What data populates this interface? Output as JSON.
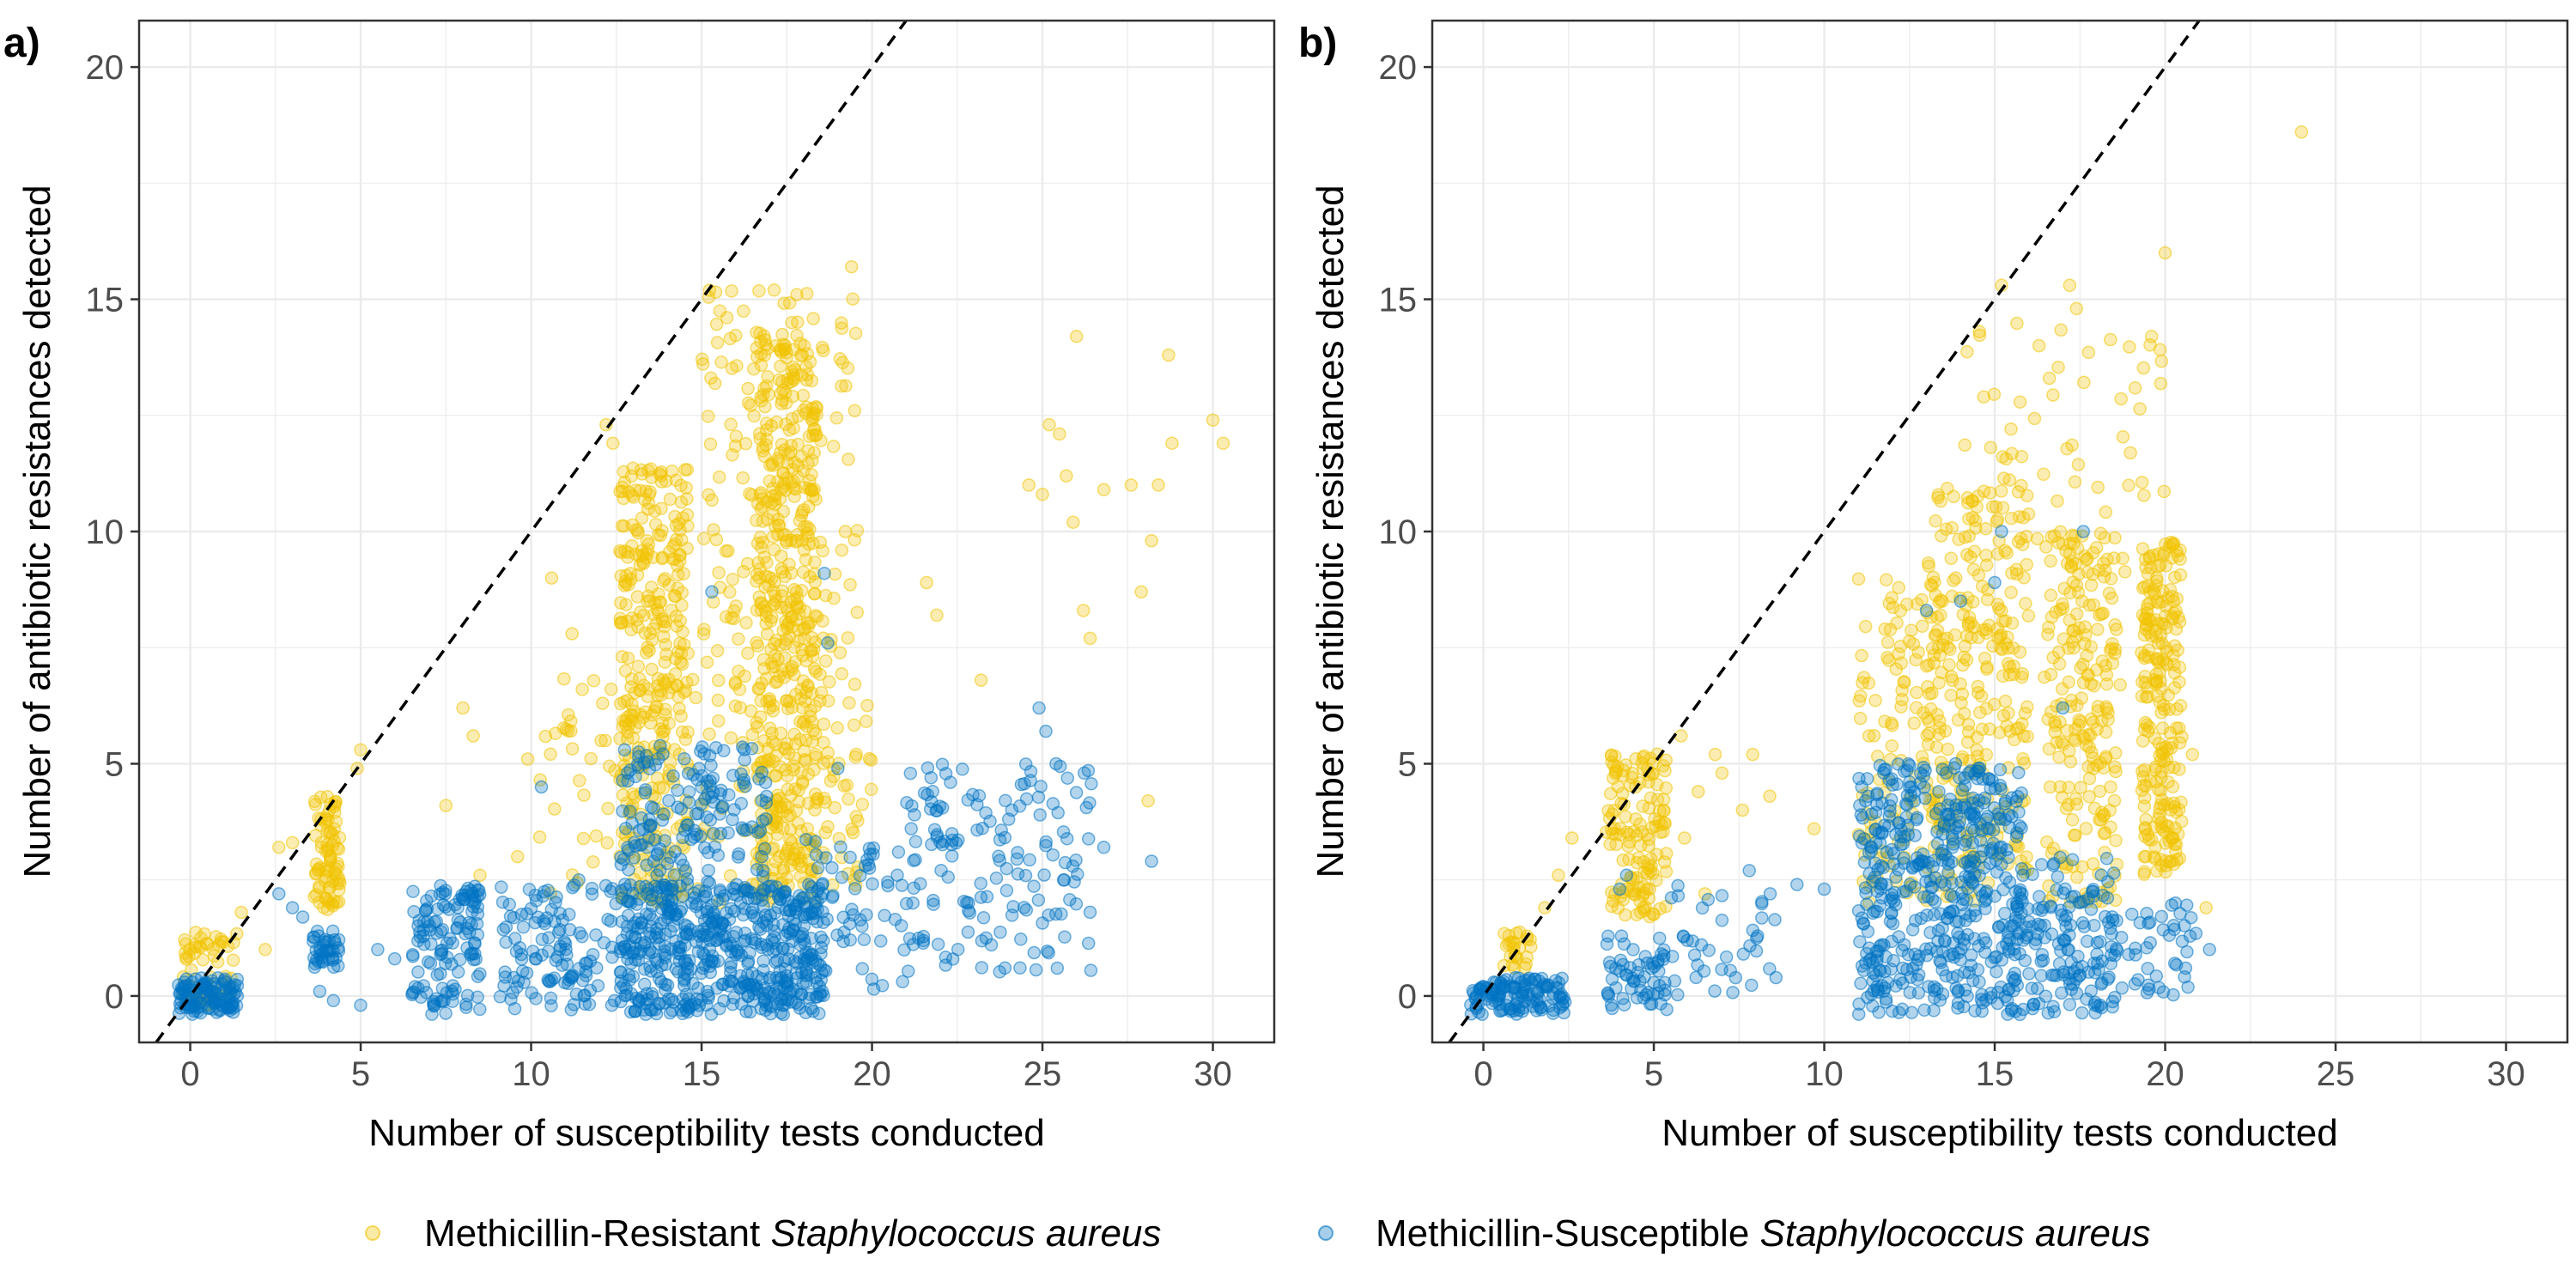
{
  "colors": {
    "mrsa": "#F1C200",
    "mssa": "#0073C2",
    "grid": "#EBEBEB",
    "frame": "#333333",
    "tick_text": "#4D4D4D",
    "background": "#FFFFFF"
  },
  "legend": {
    "mrsa_prefix": "Methicillin-Resistant",
    "mrsa_species": "Staphylococcus aureus",
    "mssa_prefix": "Methicillin-Susceptible",
    "mssa_species": "Staphylococcus aureus"
  },
  "chart_data": [
    {
      "panel": "a)",
      "type": "scatter",
      "xlabel": "Number of susceptibility tests conducted",
      "ylabel": "Number of antibiotic resistances detected",
      "xlim": [
        -1.5,
        31.8
      ],
      "ylim": [
        -1.0,
        21.0
      ],
      "xticks": [
        0,
        5,
        10,
        15,
        20,
        25,
        30
      ],
      "yticks": [
        0,
        5,
        10,
        15,
        20
      ],
      "grid": true,
      "reference_line": "y = x (dashed)",
      "series": [
        {
          "name": "Methicillin-Resistant Staphylococcus aureus",
          "color": "#F1C200",
          "clusters": [
            {
              "x": [
                -0.2,
                1.4
              ],
              "y": [
                -0.2,
                1.4
              ],
              "n": 60
            },
            {
              "x": [
                3.6,
                4.4
              ],
              "y": [
                1.8,
                4.3
              ],
              "n": 80
            },
            {
              "x": [
                12.6,
                14.6
              ],
              "y": [
                8.0,
                11.4
              ],
              "n": 140
            },
            {
              "x": [
                12.6,
                14.6
              ],
              "y": [
                2.0,
                8.0
              ],
              "n": 180
            },
            {
              "x": [
                16.6,
                18.4
              ],
              "y": [
                2.0,
                14.3
              ],
              "n": 420
            },
            {
              "x": [
                15.0,
                19.6
              ],
              "y": [
                3.0,
                15.2
              ],
              "n": 220
            },
            {
              "x": [
                10.0,
                20.0
              ],
              "y": [
                2.0,
                7.0
              ],
              "n": 120
            }
          ],
          "points": [
            {
              "x": 2.6,
              "y": 3.2
            },
            {
              "x": 3.0,
              "y": 3.3
            },
            {
              "x": 1.5,
              "y": 1.8
            },
            {
              "x": 2.2,
              "y": 1.0
            },
            {
              "x": 5.0,
              "y": 5.3
            },
            {
              "x": 8.0,
              "y": 6.2
            },
            {
              "x": 8.3,
              "y": 5.6
            },
            {
              "x": 10.6,
              "y": 9.0
            },
            {
              "x": 11.2,
              "y": 7.8
            },
            {
              "x": 11.5,
              "y": 6.6
            },
            {
              "x": 19.4,
              "y": 15.7
            },
            {
              "x": 21.6,
              "y": 8.9
            },
            {
              "x": 21.9,
              "y": 8.2
            },
            {
              "x": 23.2,
              "y": 6.8
            },
            {
              "x": 24.6,
              "y": 11.0
            },
            {
              "x": 25.0,
              "y": 10.8
            },
            {
              "x": 25.2,
              "y": 12.3
            },
            {
              "x": 25.5,
              "y": 12.1
            },
            {
              "x": 25.7,
              "y": 11.2
            },
            {
              "x": 25.9,
              "y": 10.2
            },
            {
              "x": 26.0,
              "y": 14.2
            },
            {
              "x": 26.2,
              "y": 8.3
            },
            {
              "x": 26.4,
              "y": 7.7
            },
            {
              "x": 26.8,
              "y": 10.9
            },
            {
              "x": 27.6,
              "y": 11.0
            },
            {
              "x": 28.1,
              "y": 4.2
            },
            {
              "x": 28.2,
              "y": 9.8
            },
            {
              "x": 28.4,
              "y": 11.0
            },
            {
              "x": 28.7,
              "y": 13.8
            },
            {
              "x": 28.8,
              "y": 11.9
            },
            {
              "x": 30.0,
              "y": 12.4
            },
            {
              "x": 30.3,
              "y": 11.9
            },
            {
              "x": 27.9,
              "y": 8.7
            },
            {
              "x": 4.9,
              "y": 4.9
            },
            {
              "x": 7.5,
              "y": 4.1
            },
            {
              "x": 8.5,
              "y": 2.6
            },
            {
              "x": 9.6,
              "y": 3.0
            },
            {
              "x": 9.9,
              "y": 5.1
            },
            {
              "x": 12.2,
              "y": 12.3
            },
            {
              "x": 12.4,
              "y": 11.9
            }
          ]
        },
        {
          "name": "Methicillin-Susceptible Staphylococcus aureus",
          "color": "#0073C2",
          "clusters": [
            {
              "x": [
                -0.4,
                1.4
              ],
              "y": [
                -0.4,
                0.4
              ],
              "n": 120
            },
            {
              "x": [
                3.6,
                4.4
              ],
              "y": [
                0.6,
                1.4
              ],
              "n": 40
            },
            {
              "x": [
                6.5,
                8.5
              ],
              "y": [
                0.4,
                2.4
              ],
              "n": 100
            },
            {
              "x": [
                6.5,
                8.5
              ],
              "y": [
                -0.4,
                0.3
              ],
              "n": 30
            },
            {
              "x": [
                9.0,
                12.5
              ],
              "y": [
                -0.3,
                2.4
              ],
              "n": 120
            },
            {
              "x": [
                12.6,
                18.6
              ],
              "y": [
                -0.4,
                2.4
              ],
              "n": 560
            },
            {
              "x": [
                12.6,
                17.0
              ],
              "y": [
                2.4,
                5.4
              ],
              "n": 160
            },
            {
              "x": [
                18.0,
                21.0
              ],
              "y": [
                0.0,
                3.5
              ],
              "n": 60
            },
            {
              "x": [
                21.0,
                26.5
              ],
              "y": [
                0.5,
                5.0
              ],
              "n": 150
            }
          ],
          "points": [
            {
              "x": 3.8,
              "y": 0.1
            },
            {
              "x": 4.2,
              "y": -0.1
            },
            {
              "x": 5.0,
              "y": -0.2
            },
            {
              "x": 5.5,
              "y": 1.0
            },
            {
              "x": 6.0,
              "y": 0.8
            },
            {
              "x": 2.6,
              "y": 2.2
            },
            {
              "x": 3.0,
              "y": 1.9
            },
            {
              "x": 3.3,
              "y": 1.7
            },
            {
              "x": 10.3,
              "y": 4.5
            },
            {
              "x": 11.4,
              "y": 2.5
            },
            {
              "x": 15.3,
              "y": 8.7
            },
            {
              "x": 18.7,
              "y": 7.6
            },
            {
              "x": 18.6,
              "y": 9.1
            },
            {
              "x": 19.0,
              "y": 4.9
            },
            {
              "x": 24.9,
              "y": 6.2
            },
            {
              "x": 25.1,
              "y": 5.7
            },
            {
              "x": 25.4,
              "y": 5.0
            },
            {
              "x": 26.8,
              "y": 3.2
            },
            {
              "x": 28.2,
              "y": 2.9
            },
            {
              "x": 19.8,
              "y": 2.8
            },
            {
              "x": 21.2,
              "y": 2.0
            },
            {
              "x": 23.5,
              "y": 1.1
            },
            {
              "x": 24.1,
              "y": 4.0
            },
            {
              "x": 22.3,
              "y": 4.6
            }
          ]
        }
      ]
    },
    {
      "panel": "b)",
      "type": "scatter",
      "xlabel": "Number of susceptibility tests conducted",
      "ylabel": "Number of antibiotic resistances detected",
      "xlim": [
        -1.5,
        31.8
      ],
      "ylim": [
        -1.0,
        21.0
      ],
      "xticks": [
        0,
        5,
        10,
        15,
        20,
        25,
        30
      ],
      "yticks": [
        0,
        5,
        10,
        15,
        20
      ],
      "grid": true,
      "reference_line": "y = x (dashed)",
      "series": [
        {
          "name": "Methicillin-Resistant Staphylococcus aureus",
          "color": "#F1C200",
          "clusters": [
            {
              "x": [
                0.6,
                1.4
              ],
              "y": [
                0.6,
                1.4
              ],
              "n": 25
            },
            {
              "x": [
                3.6,
                5.4
              ],
              "y": [
                1.6,
                5.3
              ],
              "n": 140
            },
            {
              "x": [
                11.0,
                13.5
              ],
              "y": [
                2.0,
                9.0
              ],
              "n": 120
            },
            {
              "x": [
                13.0,
                16.0
              ],
              "y": [
                2.0,
                11.0
              ],
              "n": 260
            },
            {
              "x": [
                16.5,
                18.6
              ],
              "y": [
                2.0,
                10.0
              ],
              "n": 200
            },
            {
              "x": [
                19.3,
                20.5
              ],
              "y": [
                2.6,
                9.8
              ],
              "n": 220
            },
            {
              "x": [
                14.0,
                20.0
              ],
              "y": [
                6.0,
                14.5
              ],
              "n": 90
            }
          ],
          "points": [
            {
              "x": 2.2,
              "y": 2.6
            },
            {
              "x": 2.6,
              "y": 3.4
            },
            {
              "x": 1.8,
              "y": 1.9
            },
            {
              "x": 5.8,
              "y": 5.6
            },
            {
              "x": 6.3,
              "y": 4.4
            },
            {
              "x": 6.8,
              "y": 5.2
            },
            {
              "x": 7.0,
              "y": 4.8
            },
            {
              "x": 7.6,
              "y": 4.0
            },
            {
              "x": 7.9,
              "y": 5.2
            },
            {
              "x": 8.4,
              "y": 4.3
            },
            {
              "x": 9.7,
              "y": 3.6
            },
            {
              "x": 6.5,
              "y": 2.2
            },
            {
              "x": 5.9,
              "y": 3.4
            },
            {
              "x": 15.2,
              "y": 15.3
            },
            {
              "x": 16.3,
              "y": 14.0
            },
            {
              "x": 16.6,
              "y": 13.3
            },
            {
              "x": 17.2,
              "y": 15.3
            },
            {
              "x": 17.4,
              "y": 14.8
            },
            {
              "x": 19.6,
              "y": 14.2
            },
            {
              "x": 20.0,
              "y": 16.0
            },
            {
              "x": 24.0,
              "y": 18.6
            },
            {
              "x": 21.2,
              "y": 1.9
            },
            {
              "x": 20.8,
              "y": 5.2
            }
          ]
        },
        {
          "name": "Methicillin-Susceptible Staphylococcus aureus",
          "color": "#0073C2",
          "clusters": [
            {
              "x": [
                -0.4,
                2.4
              ],
              "y": [
                -0.4,
                0.4
              ],
              "n": 130
            },
            {
              "x": [
                3.6,
                5.4
              ],
              "y": [
                -0.3,
                1.3
              ],
              "n": 60
            },
            {
              "x": [
                5.5,
                9.0
              ],
              "y": [
                0.0,
                2.4
              ],
              "n": 40
            },
            {
              "x": [
                11.0,
                15.8
              ],
              "y": [
                -0.4,
                5.0
              ],
              "n": 500
            },
            {
              "x": [
                15.6,
                18.6
              ],
              "y": [
                -0.4,
                3.0
              ],
              "n": 160
            },
            {
              "x": [
                18.6,
                21.0
              ],
              "y": [
                0.0,
                2.0
              ],
              "n": 40
            }
          ],
          "points": [
            {
              "x": 4.0,
              "y": 2.3
            },
            {
              "x": 4.2,
              "y": 2.6
            },
            {
              "x": 7.8,
              "y": 2.7
            },
            {
              "x": 9.2,
              "y": 2.4
            },
            {
              "x": 13.0,
              "y": 8.3
            },
            {
              "x": 14.0,
              "y": 8.5
            },
            {
              "x": 15.2,
              "y": 10.0
            },
            {
              "x": 15.0,
              "y": 8.9
            },
            {
              "x": 17.6,
              "y": 10.0
            },
            {
              "x": 17.0,
              "y": 6.2
            },
            {
              "x": 10.0,
              "y": 2.3
            },
            {
              "x": 11.1,
              "y": 4.5
            },
            {
              "x": 20.3,
              "y": 2.0
            },
            {
              "x": 21.3,
              "y": 1.0
            },
            {
              "x": 20.6,
              "y": 0.6
            }
          ]
        }
      ]
    }
  ]
}
